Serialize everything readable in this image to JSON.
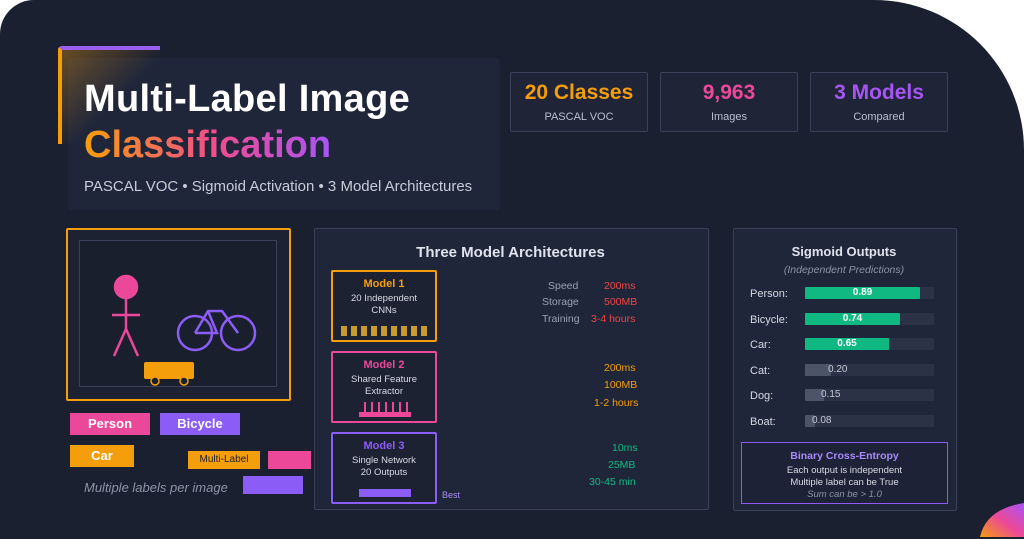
{
  "header": {
    "title_line1": "Multi-Label Image",
    "title_line2": "Classification",
    "subtitle": "PASCAL VOC • Sigmoid Activation • 3 Model Architectures"
  },
  "stats": [
    {
      "value": "20 Classes",
      "label": "PASCAL VOC",
      "color": "#f59e0b"
    },
    {
      "value": "9,963",
      "label": "Images",
      "color": "#ec4899"
    },
    {
      "value": "3 Models",
      "label": "Compared",
      "color": "#a855f7"
    }
  ],
  "image_panel": {
    "tags": [
      {
        "label": "Person",
        "color": "#ec4899"
      },
      {
        "label": "Bicycle",
        "color": "#8b5cf6"
      },
      {
        "label": "Car",
        "color": "#f59e0b"
      }
    ],
    "legend_multilabel": "Multi-Label",
    "caption": "Multiple labels per image"
  },
  "architectures": {
    "title": "Three Model Architectures",
    "metric_labels": [
      "Speed",
      "Storage",
      "Training"
    ],
    "models": [
      {
        "title": "Model 1",
        "desc": [
          "20 Independent",
          "CNNs"
        ],
        "color": "#f59e0b",
        "speed": "200ms",
        "storage": "500MB",
        "training": "3-4 hours",
        "speed_color": "#ef4444",
        "storage_color": "#ef4444",
        "training_color": "#ef4444"
      },
      {
        "title": "Model 2",
        "desc": [
          "Shared Feature",
          "Extractor"
        ],
        "color": "#ec4899",
        "speed": "200ms",
        "storage": "100MB",
        "training": "1-2 hours",
        "speed_color": "#f59e0b",
        "storage_color": "#f59e0b",
        "training_color": "#f59e0b"
      },
      {
        "title": "Model 3",
        "desc": [
          "Single Network",
          "20 Outputs"
        ],
        "color": "#8b5cf6",
        "speed": "10ms",
        "storage": "25MB",
        "training": "30-45 min",
        "speed_color": "#10b981",
        "storage_color": "#10b981",
        "training_color": "#10b981",
        "badge": "Best"
      }
    ]
  },
  "sigmoid": {
    "title": "Sigmoid Outputs",
    "subtitle": "(Independent Predictions)",
    "outputs": [
      {
        "label": "Person:",
        "value": "0.89",
        "fraction": 0.89,
        "color": "#10b981"
      },
      {
        "label": "Bicycle:",
        "value": "0.74",
        "fraction": 0.74,
        "color": "#10b981"
      },
      {
        "label": "Car:",
        "value": "0.65",
        "fraction": 0.65,
        "color": "#10b981"
      },
      {
        "label": "Cat:",
        "value": "0.20",
        "fraction": 0.2,
        "color": "#4b5468"
      },
      {
        "label": "Dog:",
        "value": "0.15",
        "fraction": 0.15,
        "color": "#4b5468"
      },
      {
        "label": "Boat:",
        "value": "0.08",
        "fraction": 0.08,
        "color": "#4b5468"
      }
    ],
    "bce": {
      "title": "Binary Cross-Entropy",
      "line1": "Each output is independent",
      "line2": "Multiple label can be True",
      "line3": "Sum can be > 1.0"
    }
  }
}
